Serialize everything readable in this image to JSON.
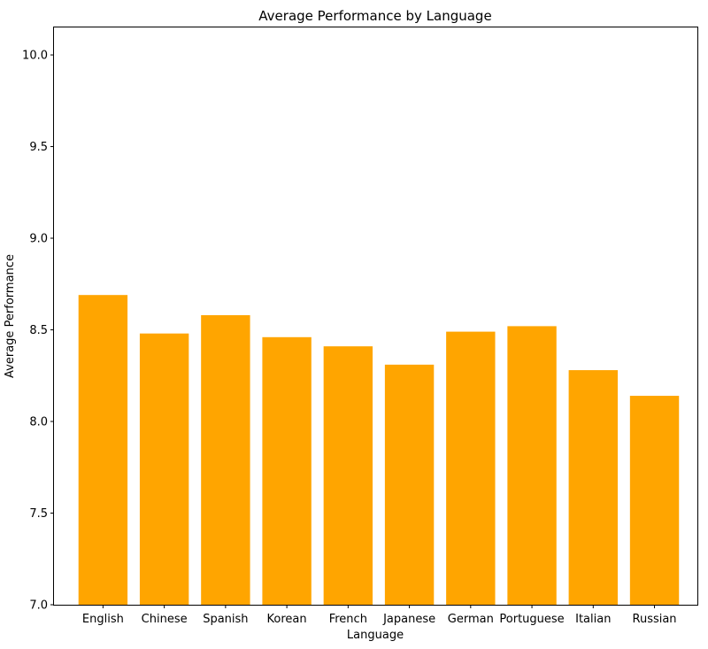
{
  "chart_data": {
    "type": "bar",
    "title": "Average Performance by Language",
    "xlabel": "Language",
    "ylabel": "Average Performance",
    "categories": [
      "English",
      "Chinese",
      "Spanish",
      "Korean",
      "French",
      "Japanese",
      "German",
      "Portuguese",
      "Italian",
      "Russian"
    ],
    "values": [
      8.69,
      8.48,
      8.58,
      8.46,
      8.41,
      8.31,
      8.49,
      8.52,
      8.28,
      8.14
    ],
    "ylim": [
      7.0,
      10.15
    ],
    "yticks": [
      7.0,
      7.5,
      8.0,
      8.5,
      9.0,
      9.5,
      10.0
    ],
    "ytick_labels": [
      "7.0",
      "7.5",
      "8.0",
      "8.5",
      "9.0",
      "9.5",
      "10.0"
    ],
    "bar_color": "#FFA500",
    "grid": false,
    "legend": "none"
  }
}
